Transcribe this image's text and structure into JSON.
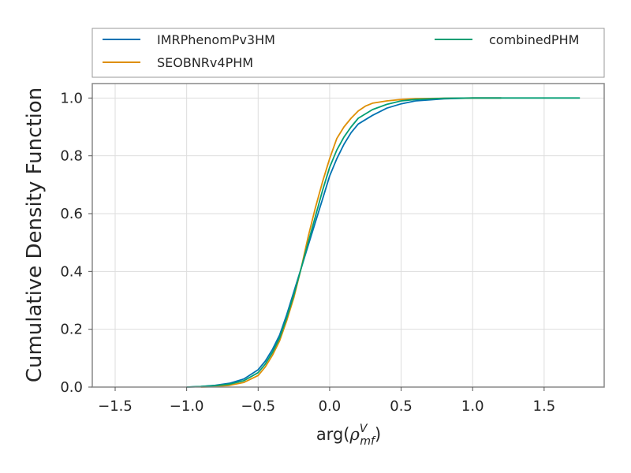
{
  "chart_data": {
    "type": "line",
    "title": "",
    "xlabel": "arg(",
    "xlabel_symbol": "ρ",
    "xlabel_superscript": "V",
    "xlabel_subscript": "mf",
    "xlabel_close": ")",
    "ylabel": "Cumulative Density Function",
    "xlim": [
      -1.66,
      1.92
    ],
    "ylim": [
      0.0,
      1.05
    ],
    "xticks": [
      -1.5,
      -1.0,
      -0.5,
      0.0,
      0.5,
      1.0,
      1.5
    ],
    "xtick_labels": [
      "−1.5",
      "−1.0",
      "−0.5",
      "0.0",
      "0.5",
      "1.0",
      "1.5"
    ],
    "yticks": [
      0.0,
      0.2,
      0.4,
      0.6,
      0.8,
      1.0
    ],
    "ytick_labels": [
      "0.0",
      "0.2",
      "0.4",
      "0.6",
      "0.8",
      "1.0"
    ],
    "grid": true,
    "legend_placement": "above plot, two columns",
    "series": [
      {
        "name": "IMRPhenomPv3HM",
        "color": "#0072b2",
        "x": [
          -1.0,
          -0.9,
          -0.8,
          -0.7,
          -0.6,
          -0.5,
          -0.45,
          -0.4,
          -0.35,
          -0.3,
          -0.25,
          -0.2,
          -0.15,
          -0.1,
          -0.05,
          0.0,
          0.05,
          0.1,
          0.15,
          0.2,
          0.3,
          0.4,
          0.5,
          0.6,
          0.8,
          1.0,
          1.2
        ],
        "y": [
          0.0,
          0.002,
          0.006,
          0.013,
          0.028,
          0.06,
          0.09,
          0.13,
          0.18,
          0.25,
          0.33,
          0.41,
          0.49,
          0.57,
          0.65,
          0.73,
          0.79,
          0.84,
          0.88,
          0.91,
          0.94,
          0.965,
          0.98,
          0.99,
          0.997,
          1.0,
          1.0
        ]
      },
      {
        "name": "SEOBNRv4PHM",
        "color": "#de8f05",
        "x": [
          -0.9,
          -0.8,
          -0.7,
          -0.6,
          -0.5,
          -0.45,
          -0.4,
          -0.35,
          -0.3,
          -0.25,
          -0.2,
          -0.15,
          -0.1,
          -0.05,
          0.0,
          0.05,
          0.1,
          0.15,
          0.2,
          0.25,
          0.3,
          0.4,
          0.5,
          0.6,
          0.8,
          1.0,
          1.2
        ],
        "y": [
          0.0,
          0.002,
          0.006,
          0.016,
          0.04,
          0.07,
          0.11,
          0.16,
          0.23,
          0.31,
          0.41,
          0.52,
          0.62,
          0.71,
          0.79,
          0.86,
          0.9,
          0.93,
          0.955,
          0.972,
          0.982,
          0.99,
          0.995,
          0.998,
          0.999,
          1.0,
          1.0
        ]
      },
      {
        "name": "combinedPHM",
        "color": "#029e73",
        "x": [
          -1.0,
          -0.9,
          -0.8,
          -0.7,
          -0.6,
          -0.5,
          -0.45,
          -0.4,
          -0.35,
          -0.3,
          -0.25,
          -0.2,
          -0.15,
          -0.1,
          -0.05,
          0.0,
          0.05,
          0.1,
          0.15,
          0.2,
          0.3,
          0.4,
          0.5,
          0.6,
          0.8,
          1.0,
          1.2,
          1.5,
          1.75
        ],
        "y": [
          0.0,
          0.002,
          0.005,
          0.01,
          0.022,
          0.05,
          0.08,
          0.12,
          0.17,
          0.24,
          0.32,
          0.41,
          0.5,
          0.59,
          0.68,
          0.76,
          0.82,
          0.865,
          0.9,
          0.93,
          0.96,
          0.978,
          0.99,
          0.995,
          0.999,
          1.0,
          1.0,
          1.0,
          1.0
        ]
      }
    ]
  }
}
